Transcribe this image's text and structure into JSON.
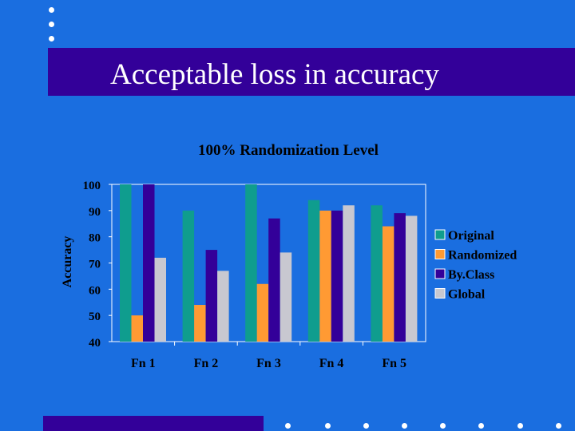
{
  "slide": {
    "title": "Acceptable loss in accuracy"
  },
  "colors": {
    "background": "#1a6ee0",
    "band": "#330099",
    "Original": "#0f9d8e",
    "Randomized": "#ff9a33",
    "ByClass": "#330099",
    "Global": "#c8c8d0"
  },
  "chart_data": {
    "type": "bar",
    "title": "100% Randomization Level",
    "xlabel": "",
    "ylabel": "Accuracy",
    "ylim": [
      40,
      100
    ],
    "yticks": [
      40,
      50,
      60,
      70,
      80,
      90,
      100
    ],
    "categories": [
      "Fn 1",
      "Fn 2",
      "Fn 3",
      "Fn 4",
      "Fn 5"
    ],
    "series": [
      {
        "name": "Original",
        "color": "#0f9d8e",
        "values": [
          100,
          90,
          100,
          94,
          92
        ]
      },
      {
        "name": "Randomized",
        "color": "#ff9a33",
        "values": [
          50,
          54,
          62,
          90,
          84
        ]
      },
      {
        "name": "By.Class",
        "color": "#330099",
        "values": [
          100,
          75,
          87,
          90,
          89
        ]
      },
      {
        "name": "Global",
        "color": "#c8c8d0",
        "values": [
          72,
          67,
          74,
          92,
          88
        ]
      }
    ],
    "legend_position": "right",
    "grid": false
  }
}
